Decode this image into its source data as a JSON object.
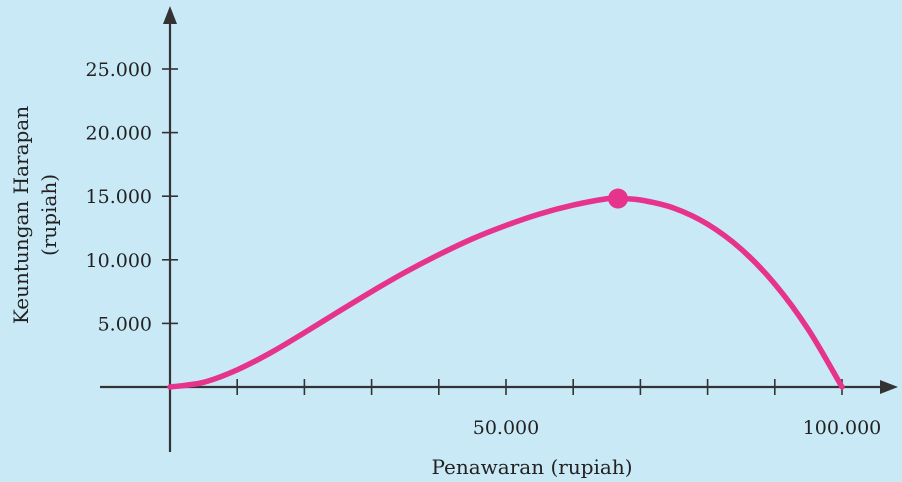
{
  "chart_data": {
    "type": "line",
    "xlabel": "Penawaran (rupiah)",
    "ylabel": "Keuntungan Harapan",
    "ylabel_unit": "(rupiah)",
    "xlim": [
      0,
      100000
    ],
    "ylim": [
      0,
      25000
    ],
    "x_ticks": [
      10000,
      20000,
      30000,
      40000,
      50000,
      60000,
      70000,
      80000,
      90000,
      100000
    ],
    "x_tick_labels": [
      {
        "value": 50000,
        "label": "50.000"
      },
      {
        "value": 100000,
        "label": "100.000"
      }
    ],
    "y_ticks": [
      5000,
      10000,
      15000,
      20000,
      25000
    ],
    "y_tick_labels": [
      {
        "value": 5000,
        "label": "5.000"
      },
      {
        "value": 10000,
        "label": "10.000"
      },
      {
        "value": 15000,
        "label": "15.000"
      },
      {
        "value": 20000,
        "label": "20.000"
      },
      {
        "value": 25000,
        "label": "25.000"
      }
    ],
    "grid": false,
    "series": [
      {
        "x": [
          0,
          5000,
          10000,
          15000,
          20000,
          25000,
          30000,
          35000,
          40000,
          45000,
          50000,
          55000,
          60000,
          65000,
          66667,
          70000,
          75000,
          80000,
          85000,
          90000,
          95000,
          100000
        ],
        "values": [
          0,
          370,
          1350,
          2700,
          4270,
          5900,
          7500,
          9020,
          10400,
          11650,
          12700,
          13600,
          14300,
          14800,
          14815,
          14700,
          14060,
          12800,
          10840,
          8100,
          4510,
          0
        ]
      }
    ],
    "highlight_point": {
      "x": 66667,
      "y": 14815
    },
    "colors": {
      "background": "#c9e9f7",
      "curve": "#e6338c",
      "axis": "#333333"
    }
  }
}
